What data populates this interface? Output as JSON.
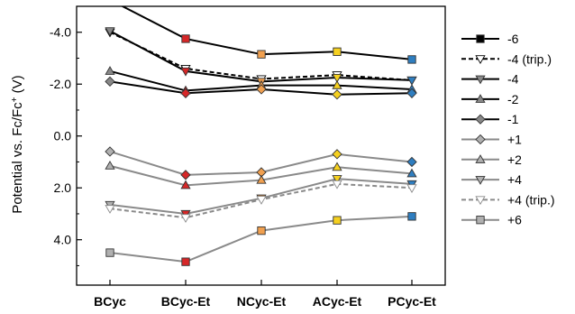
{
  "chart_data": {
    "type": "line",
    "title": "",
    "xlabel": "",
    "ylabel_parts": {
      "prefix": "Potential vs. Fc/Fc",
      "superscript": "+",
      "suffix": " (V)"
    },
    "categories": [
      "BCyc",
      "BCyc-Et",
      "NCyc-Et",
      "ACyc-Et",
      "PCyc-Et"
    ],
    "y_axis": {
      "inverted": true,
      "ylim": [
        -5.0,
        5.75
      ],
      "ticks": [
        -4.0,
        -2.0,
        0.0,
        2.0,
        4.0
      ],
      "tick_labels": [
        "-4.0",
        "-2.0",
        "0.0",
        "2.0",
        "4.0"
      ]
    },
    "grid": false,
    "legend_position": "right",
    "series": [
      {
        "name": "-6",
        "values": [
          -5.25,
          -3.75,
          -3.15,
          -3.25,
          -2.95
        ],
        "line_color": "#000000",
        "dashed": false,
        "marker": "square",
        "marker_colors": [
          "#000000",
          "#d62728",
          "#f0a050",
          "#f5d020",
          "#2f7ec0"
        ]
      },
      {
        "name": "-4 (trip.)",
        "values": [
          -4.0,
          -2.6,
          -2.2,
          -2.35,
          -2.15
        ],
        "line_color": "#000000",
        "dashed": true,
        "marker": "triangle-down-open",
        "marker_colors": [
          "#ffffff",
          "#ffffff",
          "#ffffff",
          "#ffffff",
          "#ffffff"
        ]
      },
      {
        "name": "-4",
        "values": [
          -4.05,
          -2.5,
          -2.1,
          -2.25,
          -2.15
        ],
        "line_color": "#000000",
        "dashed": false,
        "marker": "triangle-down",
        "marker_colors": [
          "#888888",
          "#d62728",
          "#f0a050",
          "#f5d020",
          "#2f7ec0"
        ]
      },
      {
        "name": "-2",
        "values": [
          -2.5,
          -1.75,
          -1.95,
          -1.95,
          -1.8
        ],
        "line_color": "#000000",
        "dashed": false,
        "marker": "triangle-up",
        "marker_colors": [
          "#888888",
          "#d62728",
          "#f0a050",
          "#f5d020",
          "#2f7ec0"
        ]
      },
      {
        "name": "-1",
        "values": [
          -2.1,
          -1.65,
          -1.8,
          -1.6,
          -1.65
        ],
        "line_color": "#000000",
        "dashed": false,
        "marker": "diamond",
        "marker_colors": [
          "#888888",
          "#d62728",
          "#f0a050",
          "#f5d020",
          "#2f7ec0"
        ]
      },
      {
        "name": "+1",
        "values": [
          0.6,
          1.5,
          1.4,
          0.7,
          1.0
        ],
        "line_color": "#8a8a8a",
        "dashed": false,
        "marker": "diamond",
        "marker_colors": [
          "#b0b0b0",
          "#d62728",
          "#f0a050",
          "#f5d020",
          "#2f7ec0"
        ]
      },
      {
        "name": "+2",
        "values": [
          1.15,
          1.9,
          1.7,
          1.2,
          1.45
        ],
        "line_color": "#8a8a8a",
        "dashed": false,
        "marker": "triangle-up",
        "marker_colors": [
          "#b0b0b0",
          "#d62728",
          "#f0a050",
          "#f5d020",
          "#2f7ec0"
        ]
      },
      {
        "name": "+4",
        "values": [
          2.65,
          3.0,
          2.4,
          1.65,
          1.85
        ],
        "line_color": "#8a8a8a",
        "dashed": false,
        "marker": "triangle-down",
        "marker_colors": [
          "#b0b0b0",
          "#d62728",
          "#f0a050",
          "#f5d020",
          "#2f7ec0"
        ]
      },
      {
        "name": "+4 (trip.)",
        "values": [
          2.8,
          3.15,
          2.45,
          1.85,
          2.0
        ],
        "line_color": "#8a8a8a",
        "dashed": true,
        "marker": "triangle-down-open",
        "marker_colors": [
          "#ffffff",
          "#ffffff",
          "#ffffff",
          "#ffffff",
          "#ffffff"
        ]
      },
      {
        "name": "+6",
        "values": [
          4.5,
          4.85,
          3.65,
          3.25,
          3.1
        ],
        "line_color": "#8a8a8a",
        "dashed": false,
        "marker": "square",
        "marker_colors": [
          "#b0b0b0",
          "#d62728",
          "#f0a050",
          "#f5d020",
          "#2f7ec0"
        ]
      }
    ]
  }
}
